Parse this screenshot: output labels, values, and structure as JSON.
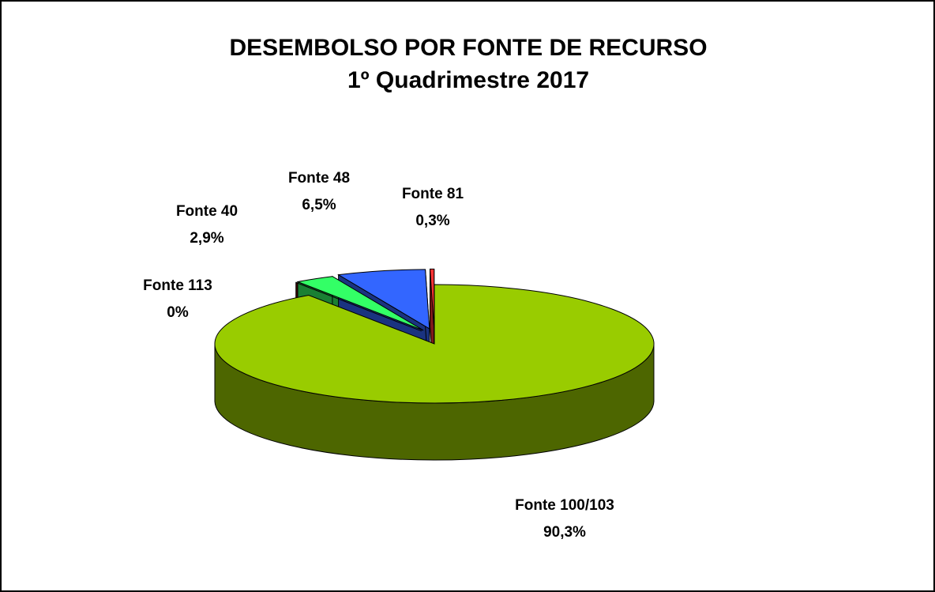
{
  "chart_data": {
    "type": "pie",
    "title": "DESEMBOLSO POR FONTE DE RECURSO",
    "subtitle": "1º Quadrimestre 2017",
    "categories": [
      "Fonte 100/103",
      "Fonte 113",
      "Fonte 40",
      "Fonte 48",
      "Fonte 81"
    ],
    "values": [
      90.3,
      0,
      2.9,
      6.5,
      0.3
    ],
    "value_labels": [
      "90,3%",
      "0%",
      "2,9%",
      "6,5%",
      "0,3%"
    ],
    "colors": [
      "#99cc00",
      "#990000",
      "#33ff66",
      "#3366ff",
      "#ff3333"
    ],
    "side_colors": [
      "#4d6600",
      "#4d0000",
      "#1a8033",
      "#1a3380",
      "#801a1a"
    ]
  }
}
